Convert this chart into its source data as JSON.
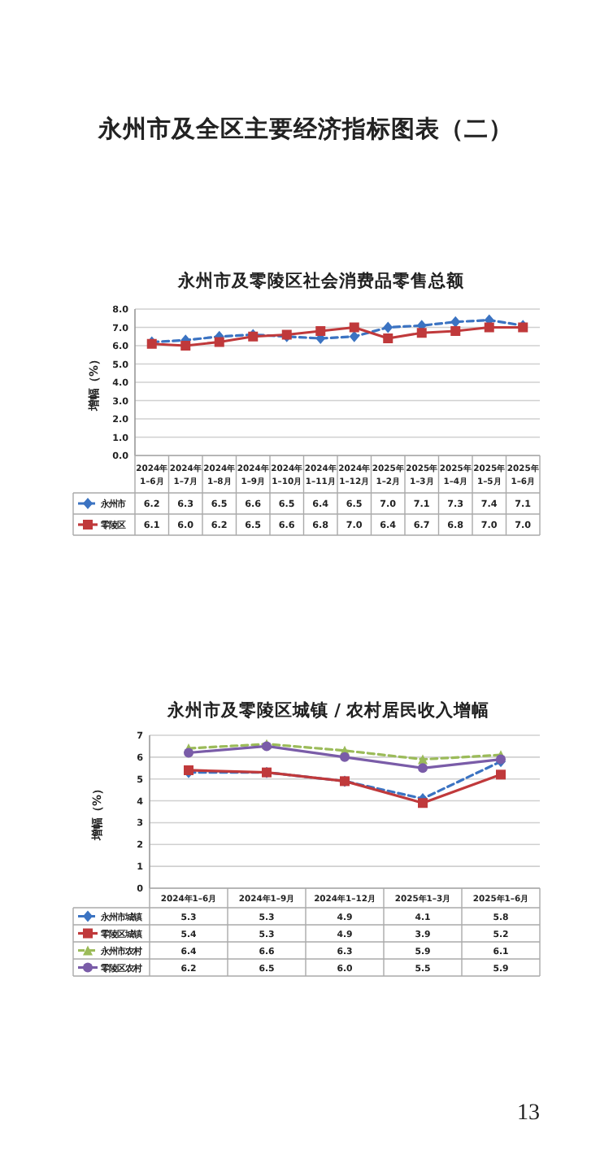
{
  "chart_data": [
    {
      "type": "line",
      "title": "永州市及零陵区社会消费品零售总额",
      "ylabel": "增幅（%）",
      "annotations": [
        "永州市及全区主要经济指标图表（二）"
      ],
      "categories": [
        "2024年\n1–6月",
        "2024年\n1–7月",
        "2024年\n1–8月",
        "2024年\n1–9月",
        "2024年\n1–10月",
        "2024年\n1–11月",
        "2024年\n1–12月",
        "2025年\n1–2月",
        "2025年\n1–3月",
        "2025年\n1–4月",
        "2025年\n1–5月",
        "2025年\n1–6月"
      ],
      "ylim": [
        0,
        8
      ],
      "yticks": [
        {
          "value": 0,
          "label": "0.0"
        },
        {
          "value": 1,
          "label": "1.0"
        },
        {
          "value": 2,
          "label": "2.0"
        },
        {
          "value": 3,
          "label": "3.0"
        },
        {
          "value": 4,
          "label": "4.0"
        },
        {
          "value": 5,
          "label": "5.0"
        },
        {
          "value": 6,
          "label": "6.0"
        },
        {
          "value": 7,
          "label": "7.0"
        },
        {
          "value": 8,
          "label": "8.0"
        }
      ],
      "grid": "y",
      "legend": "bottom left",
      "series": [
        {
          "name": "永州市",
          "color": "#3b73c2",
          "marker": "diamond",
          "line_style": "dashed",
          "values": [
            6.2,
            6.3,
            6.5,
            6.6,
            6.5,
            6.4,
            6.5,
            7.0,
            7.1,
            7.3,
            7.4,
            7.1
          ],
          "value_labels": [
            "6.2",
            "6.3",
            "6.5",
            "6.6",
            "6.5",
            "6.4",
            "6.5",
            "7.0",
            "7.1",
            "7.3",
            "7.4",
            "7.1"
          ]
        },
        {
          "name": "零陵区",
          "color": "#c0393b",
          "marker": "square",
          "line_style": "solid",
          "values": [
            6.1,
            6.0,
            6.2,
            6.5,
            6.6,
            6.8,
            7.0,
            6.4,
            6.7,
            6.8,
            7.0,
            7.0
          ],
          "value_labels": [
            "6.1",
            "6.0",
            "6.2",
            "6.5",
            "6.6",
            "6.8",
            "7.0",
            "6.4",
            "6.7",
            "6.8",
            "7.0",
            "7.0"
          ]
        }
      ]
    },
    {
      "type": "line",
      "title": "永州市及零陵区城镇 / 农村居民收入增幅",
      "ylabel": "增幅（%）",
      "annotations": [
        "13"
      ],
      "categories": [
        "2024年1–6月",
        "2024年1–9月",
        "2024年1–12月",
        "2025年1–3月",
        "2025年1–6月"
      ],
      "ylim": [
        0,
        7
      ],
      "yticks": [
        0,
        1,
        2,
        3,
        4,
        5,
        6,
        7
      ],
      "grid": "y",
      "legend": "bottom left",
      "series": [
        {
          "name": "永州市城镇",
          "color": "#3b73c2",
          "marker": "diamond",
          "line_style": "dashed",
          "values": [
            5.3,
            5.3,
            4.9,
            4.1,
            5.8
          ],
          "value_labels": [
            "5.3",
            "5.3",
            "4.9",
            "4.1",
            "5.8"
          ]
        },
        {
          "name": "零陵区城镇",
          "color": "#c0393b",
          "marker": "square",
          "line_style": "solid",
          "values": [
            5.4,
            5.3,
            4.9,
            3.9,
            5.2
          ],
          "value_labels": [
            "5.4",
            "5.3",
            "4.9",
            "3.9",
            "5.2"
          ]
        },
        {
          "name": "永州市农村",
          "color": "#9bbb59",
          "marker": "triangle",
          "line_style": "dashed",
          "values": [
            6.4,
            6.6,
            6.3,
            5.9,
            6.1
          ],
          "value_labels": [
            "6.4",
            "6.6",
            "6.3",
            "5.9",
            "6.1"
          ]
        },
        {
          "name": "零陵区农村",
          "color": "#7a5ca8",
          "marker": "circle",
          "line_style": "solid",
          "values": [
            6.2,
            6.5,
            6.0,
            5.5,
            5.9
          ],
          "value_labels": [
            "6.2",
            "6.5",
            "6.0",
            "5.5",
            "5.9"
          ]
        }
      ]
    }
  ]
}
